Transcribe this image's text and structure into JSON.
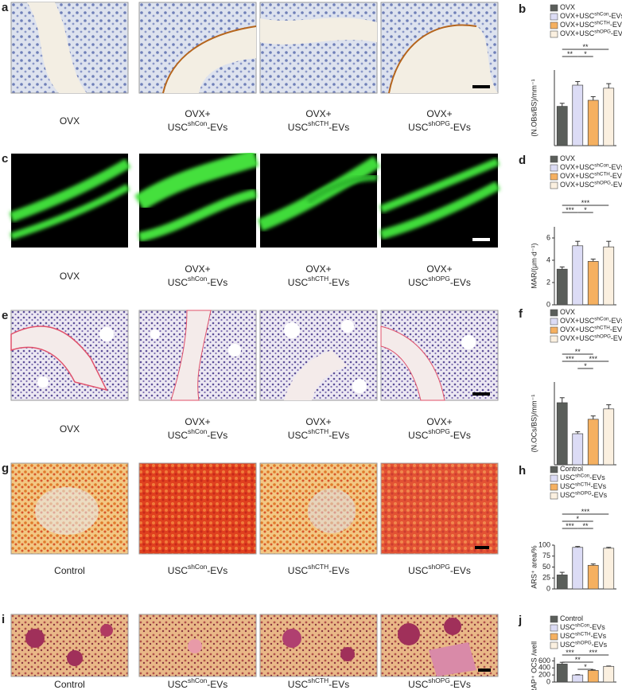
{
  "image_panels": [
    {
      "label": "a",
      "captions": [
        {
          "base": "OVX"
        },
        {
          "line1": "OVX+",
          "base": "USC",
          "sup": "shCon",
          "tail": "-EVs"
        },
        {
          "line1": "OVX+",
          "base": "USC",
          "sup": "shCTH",
          "tail": "-EVs"
        },
        {
          "line1": "OVX+",
          "base": "USC",
          "sup": "shOPG",
          "tail": "-EVs"
        }
      ]
    },
    {
      "label": "c",
      "captions": [
        {
          "base": "OVX"
        },
        {
          "line1": "OVX+",
          "base": "USC",
          "sup": "shCon",
          "tail": "-EVs"
        },
        {
          "line1": "OVX+",
          "base": "USC",
          "sup": "shCTH",
          "tail": "-EVs"
        },
        {
          "line1": "OVX+",
          "base": "USC",
          "sup": "shOPG",
          "tail": "-EVs"
        }
      ]
    },
    {
      "label": "e",
      "captions": [
        {
          "base": "OVX"
        },
        {
          "line1": "OVX+",
          "base": "USC",
          "sup": "shCon",
          "tail": "-EVs"
        },
        {
          "line1": "OVX+",
          "base": "USC",
          "sup": "shCTH",
          "tail": "-EVs"
        },
        {
          "line1": "OVX+",
          "base": "USC",
          "sup": "shOPG",
          "tail": "-EVs"
        }
      ]
    },
    {
      "label": "g",
      "captions": [
        {
          "base": "Control"
        },
        {
          "base": "USC",
          "sup": "shCon",
          "tail": "-EVs"
        },
        {
          "base": "USC",
          "sup": "shCTH",
          "tail": "-EVs"
        },
        {
          "base": "USC",
          "sup": "shOPG",
          "tail": "-EVs"
        }
      ]
    },
    {
      "label": "i",
      "captions": [
        {
          "base": "Control"
        },
        {
          "base": "USC",
          "sup": "shCon",
          "tail": "-EVs"
        },
        {
          "base": "USC",
          "sup": "shCTH",
          "tail": "-EVs"
        },
        {
          "base": "USC",
          "sup": "shOPG",
          "tail": "-EVs"
        }
      ]
    }
  ],
  "chart_data": [
    {
      "type": "bar",
      "panel_label": "b",
      "y_label": "(N.OBs/BS)/mm⁻¹",
      "ylim": [
        0,
        25
      ],
      "series": [
        {
          "name": {
            "base": "OVX"
          },
          "color": "#5a5e5a",
          "values": [
            13
          ],
          "errors": [
            1
          ]
        },
        {
          "name": {
            "base": "OVX+USC",
            "sup": "shCon",
            "tail": "-EVs"
          },
          "color": "#dcdcf5",
          "values": [
            20
          ],
          "errors": [
            1.2
          ]
        },
        {
          "name": {
            "base": "OVX+USC",
            "sup": "shCTH",
            "tail": "-EVs"
          },
          "color": "#f5b060",
          "values": [
            15
          ],
          "errors": [
            1.2
          ]
        },
        {
          "name": {
            "base": "OVX+USC",
            "sup": "shOPG",
            "tail": "-EVs"
          },
          "color": "#fbf0e0",
          "values": [
            19
          ],
          "errors": [
            1.5
          ]
        }
      ],
      "significance": [
        {
          "from": 0,
          "to": 3,
          "label": "**"
        },
        {
          "from": 0,
          "to": 1,
          "label": "**"
        },
        {
          "from": 1,
          "to": 2,
          "label": "*"
        }
      ]
    },
    {
      "type": "bar",
      "panel_label": "d",
      "y_label": "MAR/(μm·d⁻¹)",
      "ylim": [
        0,
        7
      ],
      "yticks": [
        0,
        2,
        4,
        6
      ],
      "series": [
        {
          "name": {
            "base": "OVX"
          },
          "color": "#5a5e5a",
          "values": [
            3.2
          ],
          "errors": [
            0.2
          ]
        },
        {
          "name": {
            "base": "OVX+USC",
            "sup": "shCon",
            "tail": "-EVs"
          },
          "color": "#dcdcf5",
          "values": [
            5.3
          ],
          "errors": [
            0.4
          ]
        },
        {
          "name": {
            "base": "OVX+USC",
            "sup": "shCTH",
            "tail": "-EVs"
          },
          "color": "#f5b060",
          "values": [
            3.9
          ],
          "errors": [
            0.2
          ]
        },
        {
          "name": {
            "base": "OVX+USC",
            "sup": "shOPG",
            "tail": "-EVs"
          },
          "color": "#fbf0e0",
          "values": [
            5.2
          ],
          "errors": [
            0.5
          ]
        }
      ],
      "significance": [
        {
          "from": 0,
          "to": 3,
          "label": "***"
        },
        {
          "from": 0,
          "to": 1,
          "label": "***"
        },
        {
          "from": 1,
          "to": 2,
          "label": "*"
        }
      ]
    },
    {
      "type": "bar",
      "panel_label": "f",
      "y_label": "(N.OCs/BS)/mm⁻¹",
      "ylim": [
        0,
        20
      ],
      "series": [
        {
          "name": {
            "base": "OVX"
          },
          "color": "#5a5e5a",
          "values": [
            15
          ],
          "errors": [
            1.2
          ]
        },
        {
          "name": {
            "base": "OVX+USC",
            "sup": "shCon",
            "tail": "-EVs"
          },
          "color": "#dcdcf5",
          "values": [
            7.5
          ],
          "errors": [
            0.5
          ]
        },
        {
          "name": {
            "base": "OVX+USC",
            "sup": "shCTH",
            "tail": "-EVs"
          },
          "color": "#f5b060",
          "values": [
            11
          ],
          "errors": [
            0.8
          ]
        },
        {
          "name": {
            "base": "OVX+USC",
            "sup": "shOPG",
            "tail": "-EVs"
          },
          "color": "#fbf0e0",
          "values": [
            13.5
          ],
          "errors": [
            1
          ]
        }
      ],
      "significance": [
        {
          "from": 0,
          "to": 2,
          "label": "**"
        },
        {
          "from": 0,
          "to": 1,
          "label": "***"
        },
        {
          "from": 1,
          "to": 3,
          "label": "***"
        },
        {
          "from": 1,
          "to": 2,
          "label": "*"
        }
      ]
    },
    {
      "type": "bar",
      "panel_label": "h",
      "y_label": "ARS⁺ area/%",
      "ylim": [
        0,
        100
      ],
      "yticks": [
        0,
        25,
        50,
        75,
        100
      ],
      "series": [
        {
          "name": {
            "base": "Control"
          },
          "color": "#5a5e5a",
          "values": [
            32
          ],
          "errors": [
            6
          ]
        },
        {
          "name": {
            "base": "USC",
            "sup": "shCon",
            "tail": "-EVs"
          },
          "color": "#dcdcf5",
          "values": [
            95
          ],
          "errors": [
            2
          ]
        },
        {
          "name": {
            "base": "USC",
            "sup": "shCTH",
            "tail": "-EVs"
          },
          "color": "#f5b060",
          "values": [
            54
          ],
          "errors": [
            3
          ]
        },
        {
          "name": {
            "base": "USC",
            "sup": "shOPG",
            "tail": "-EVs"
          },
          "color": "#fbf0e0",
          "values": [
            93
          ],
          "errors": [
            2
          ]
        }
      ],
      "significance": [
        {
          "from": 0,
          "to": 3,
          "label": "***"
        },
        {
          "from": 0,
          "to": 2,
          "label": "*"
        },
        {
          "from": 0,
          "to": 1,
          "label": "***"
        },
        {
          "from": 1,
          "to": 2,
          "label": "**"
        }
      ]
    },
    {
      "type": "bar",
      "panel_label": "j",
      "y_label": "TRAP⁺ OCS /well",
      "ylim": [
        0,
        700
      ],
      "yticks": [
        0,
        200,
        400,
        600
      ],
      "series": [
        {
          "name": {
            "base": "Control"
          },
          "color": "#5a5e5a",
          "values": [
            510
          ],
          "errors": [
            50
          ]
        },
        {
          "name": {
            "base": "USC",
            "sup": "shCon",
            "tail": "-EVs"
          },
          "color": "#dcdcf5",
          "values": [
            200
          ],
          "errors": [
            10
          ]
        },
        {
          "name": {
            "base": "USC",
            "sup": "shCTH",
            "tail": "-EVs"
          },
          "color": "#f5b060",
          "values": [
            330
          ],
          "errors": [
            15
          ]
        },
        {
          "name": {
            "base": "USC",
            "sup": "shOPG",
            "tail": "-EVs"
          },
          "color": "#fbf0e0",
          "values": [
            445
          ],
          "errors": [
            10
          ]
        }
      ],
      "significance": [
        {
          "from": 0,
          "to": 1,
          "label": "***"
        },
        {
          "from": 0,
          "to": 2,
          "label": "**"
        },
        {
          "from": 1,
          "to": 3,
          "label": "***"
        },
        {
          "from": 1,
          "to": 2,
          "label": "*"
        }
      ]
    }
  ]
}
